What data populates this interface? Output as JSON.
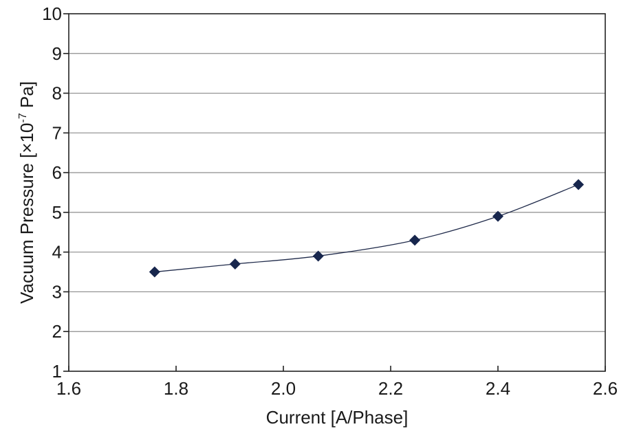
{
  "chart_data": {
    "type": "line",
    "xlabel": "Current [A/Phase]",
    "ylabel": {
      "main": "Vacuum Pressure [",
      "times": "×",
      "base": "10",
      "exponent": "-7",
      "unit": " Pa]"
    },
    "xlim": [
      1.6,
      2.6
    ],
    "ylim": [
      1,
      10
    ],
    "x_ticks": [
      "1.6",
      "1.8",
      "2.0",
      "2.2",
      "2.4",
      "2.6"
    ],
    "y_ticks": [
      "1",
      "2",
      "3",
      "4",
      "5",
      "6",
      "7",
      "8",
      "9",
      "10"
    ],
    "grid": "horizontal",
    "marker": "diamond",
    "colors": {
      "series": "#17264d",
      "line": "#1f2a4a",
      "grid": "#8c8c8c"
    },
    "series": [
      {
        "x": [
          1.76,
          1.91,
          2.065,
          2.245,
          2.4,
          2.55
        ],
        "y": [
          3.5,
          3.7,
          3.9,
          4.3,
          4.9,
          5.7
        ]
      }
    ]
  }
}
